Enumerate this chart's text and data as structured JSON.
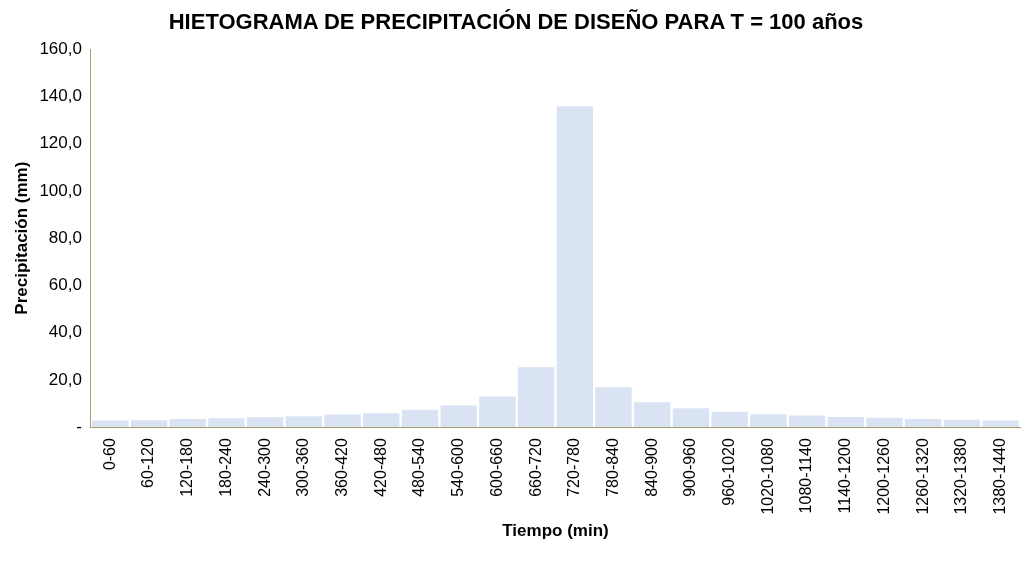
{
  "chart_data": {
    "type": "bar",
    "title": "HIETOGRAMA DE PRECIPITACIÓN DE DISEÑO PARA T = 100 años",
    "xlabel": "Tiempo (min)",
    "ylabel": "Precipitación (mm)",
    "categories": [
      "0-60",
      "60-120",
      "120-180",
      "180-240",
      "240-300",
      "300-360",
      "360-420",
      "420-480",
      "480-540",
      "540-600",
      "600-660",
      "660-720",
      "720-780",
      "780-840",
      "840-900",
      "900-960",
      "960-1020",
      "1020-1080",
      "1080-1140",
      "1140-1200",
      "1200-1260",
      "1260-1320",
      "1320-1380",
      "1380-1440"
    ],
    "series": [
      {
        "color": "#dae3f3",
        "values": [
          2.8,
          2.9,
          3.4,
          3.7,
          4.2,
          4.6,
          5.3,
          5.9,
          7.3,
          9.1,
          13.0,
          25.3,
          135.8,
          16.9,
          10.5,
          8.0,
          6.5,
          5.4,
          4.9,
          4.3,
          3.9,
          3.4,
          3.1,
          2.8
        ]
      }
    ],
    "ylim": [
      0,
      160
    ],
    "yticks": [
      {
        "value": 0,
        "label": "-"
      },
      {
        "value": 20,
        "label": "20,0"
      },
      {
        "value": 40,
        "label": "40,0"
      },
      {
        "value": 60,
        "label": "60,0"
      },
      {
        "value": 80,
        "label": "80,0"
      },
      {
        "value": 100,
        "label": "100,0"
      },
      {
        "value": 120,
        "label": "120,0"
      },
      {
        "value": 140,
        "label": "140,0"
      },
      {
        "value": 160,
        "label": "160,0"
      }
    ],
    "grid": false,
    "legend": false
  }
}
